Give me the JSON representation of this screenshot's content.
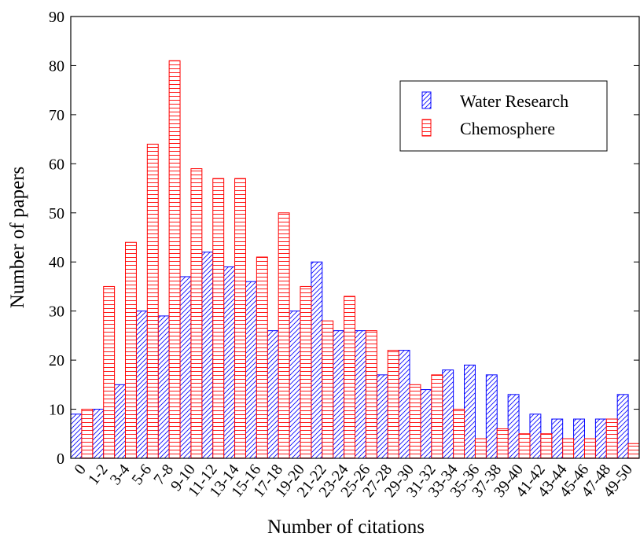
{
  "chart_data": {
    "type": "bar",
    "title": "",
    "xlabel": "Number of citations",
    "ylabel": "Number of papers",
    "ylim": [
      0,
      90
    ],
    "yticks": [
      0,
      10,
      20,
      30,
      40,
      50,
      60,
      70,
      80,
      90
    ],
    "grid": false,
    "legend_position": "top-right",
    "categories": [
      "0",
      "1-2",
      "3-4",
      "5-6",
      "7-8",
      "9-10",
      "11-12",
      "13-14",
      "15-16",
      "17-18",
      "19-20",
      "21-22",
      "23-24",
      "25-26",
      "27-28",
      "29-30",
      "31-32",
      "33-34",
      "35-36",
      "37-38",
      "39-40",
      "41-42",
      "43-44",
      "45-46",
      "47-48",
      "49-50"
    ],
    "series": [
      {
        "name": "Water Research",
        "color": "#0000ff",
        "pattern": "diagonal-hatch",
        "values": [
          9,
          10,
          15,
          30,
          29,
          37,
          42,
          39,
          36,
          26,
          30,
          40,
          26,
          26,
          17,
          22,
          14,
          18,
          19,
          17,
          13,
          9,
          8,
          8,
          8,
          13
        ]
      },
      {
        "name": "Chemosphere",
        "color": "#ff0000",
        "pattern": "horizontal-hatch",
        "values": [
          10,
          35,
          44,
          64,
          81,
          59,
          57,
          57,
          41,
          50,
          35,
          28,
          33,
          26,
          22,
          15,
          17,
          10,
          4,
          6,
          5,
          5,
          4,
          4,
          8,
          3
        ]
      }
    ]
  }
}
